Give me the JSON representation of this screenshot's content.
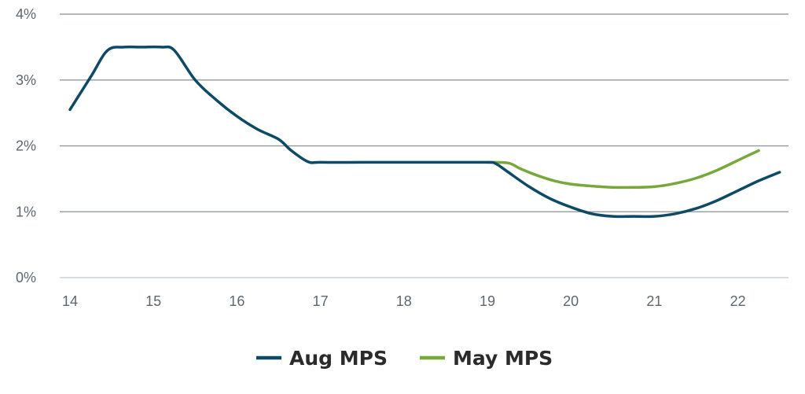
{
  "chart_data": {
    "type": "line",
    "title": "",
    "xlabel": "",
    "ylabel": "",
    "xlim": [
      13.9,
      22.6
    ],
    "ylim": [
      0,
      4
    ],
    "x_ticks": [
      14,
      15,
      16,
      17,
      18,
      19,
      20,
      21,
      22
    ],
    "y_ticks": [
      0,
      1,
      2,
      3,
      4
    ],
    "y_tick_labels": [
      "0%",
      "1%",
      "2%",
      "3%",
      "4%"
    ],
    "grid": "horizontal",
    "legend_position": "bottom-center",
    "series": [
      {
        "name": "Aug MPS",
        "color": "#0e4a66",
        "points": [
          [
            14.0,
            2.55
          ],
          [
            14.25,
            3.05
          ],
          [
            14.45,
            3.45
          ],
          [
            14.65,
            3.5
          ],
          [
            14.85,
            3.5
          ],
          [
            15.1,
            3.5
          ],
          [
            15.25,
            3.45
          ],
          [
            15.5,
            3.0
          ],
          [
            15.75,
            2.7
          ],
          [
            16.0,
            2.45
          ],
          [
            16.25,
            2.25
          ],
          [
            16.5,
            2.1
          ],
          [
            16.65,
            1.93
          ],
          [
            16.85,
            1.76
          ],
          [
            17.0,
            1.75
          ],
          [
            17.5,
            1.75
          ],
          [
            18.0,
            1.75
          ],
          [
            18.5,
            1.75
          ],
          [
            19.0,
            1.75
          ],
          [
            19.1,
            1.73
          ],
          [
            19.25,
            1.6
          ],
          [
            19.5,
            1.38
          ],
          [
            19.75,
            1.2
          ],
          [
            20.0,
            1.07
          ],
          [
            20.25,
            0.97
          ],
          [
            20.5,
            0.93
          ],
          [
            20.75,
            0.93
          ],
          [
            21.0,
            0.93
          ],
          [
            21.25,
            0.97
          ],
          [
            21.5,
            1.05
          ],
          [
            21.75,
            1.17
          ],
          [
            22.0,
            1.32
          ],
          [
            22.25,
            1.47
          ],
          [
            22.5,
            1.6
          ]
        ]
      },
      {
        "name": "May MPS",
        "color": "#76a83b",
        "points": [
          [
            19.0,
            1.75
          ],
          [
            19.25,
            1.74
          ],
          [
            19.4,
            1.65
          ],
          [
            19.6,
            1.55
          ],
          [
            19.8,
            1.47
          ],
          [
            20.0,
            1.42
          ],
          [
            20.25,
            1.39
          ],
          [
            20.5,
            1.37
          ],
          [
            20.75,
            1.37
          ],
          [
            21.0,
            1.38
          ],
          [
            21.25,
            1.43
          ],
          [
            21.5,
            1.51
          ],
          [
            21.75,
            1.63
          ],
          [
            22.0,
            1.78
          ],
          [
            22.25,
            1.93
          ]
        ]
      }
    ]
  }
}
